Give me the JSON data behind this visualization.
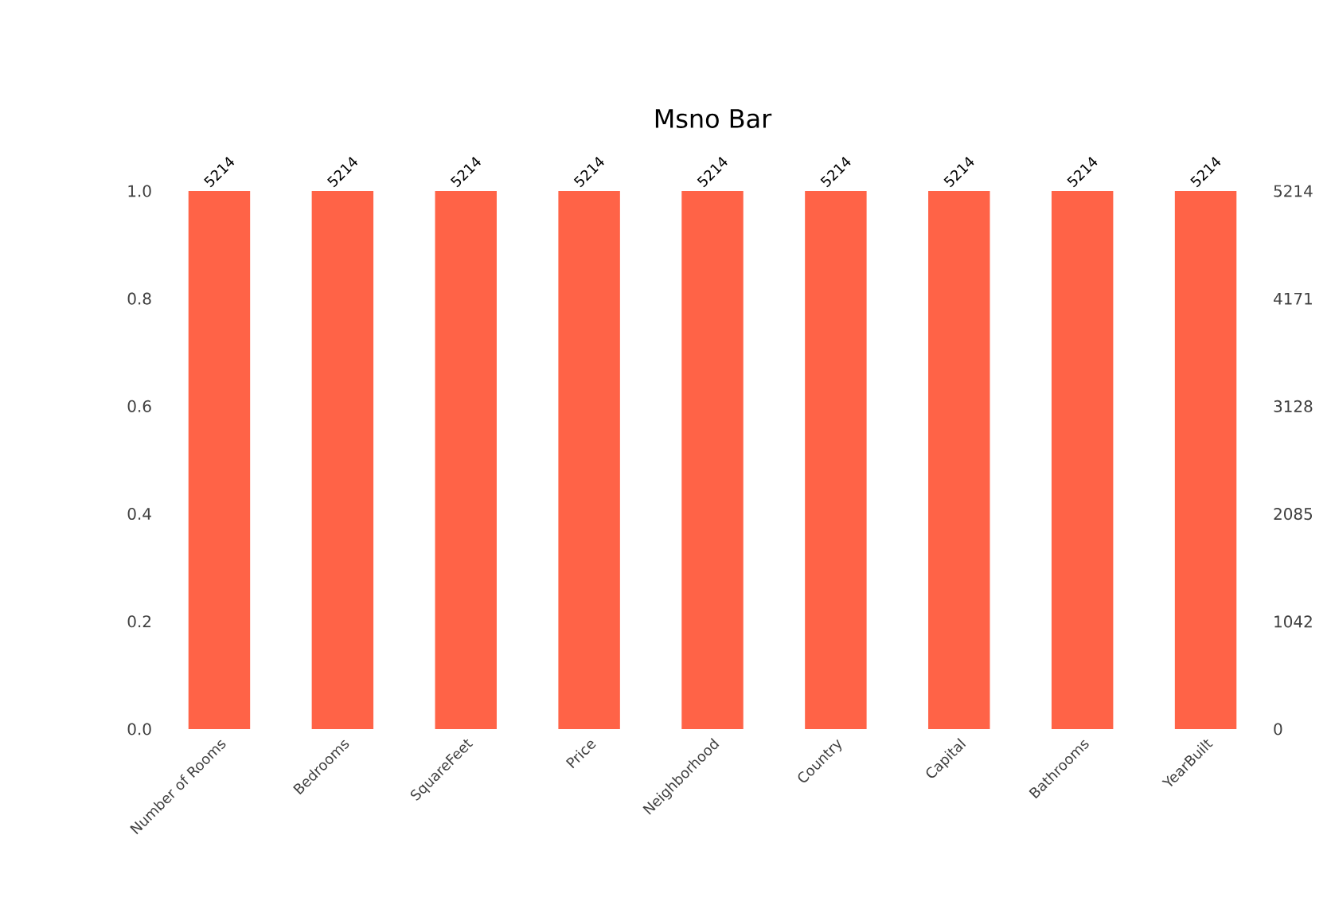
{
  "chart_data": {
    "type": "bar",
    "title": "Msno Bar",
    "categories": [
      "Number of Rooms",
      "Bedrooms",
      "SquareFeet",
      "Price",
      "Neighborhood",
      "Country",
      "Capital",
      "Bathrooms",
      "YearBuilt"
    ],
    "series": [
      {
        "color": "#ff6347",
        "axis": "y2",
        "values": [
          5214,
          5214,
          5214,
          5214,
          5214,
          5214,
          5214,
          5214,
          5214
        ]
      }
    ],
    "data_labels": true,
    "ylim": [
      0,
      1
    ],
    "yticks": [
      {
        "value": 0,
        "label": "0.0"
      },
      {
        "value": 0.2,
        "label": "0.2"
      },
      {
        "value": 0.4,
        "label": "0.4"
      },
      {
        "value": 0.6,
        "label": "0.6"
      },
      {
        "value": 0.8,
        "label": "0.8"
      },
      {
        "value": 1,
        "label": "1.0"
      }
    ],
    "y2lim": [
      0,
      5214
    ],
    "y2ticks": [
      0,
      1042,
      2085,
      3128,
      4171,
      5214
    ]
  }
}
